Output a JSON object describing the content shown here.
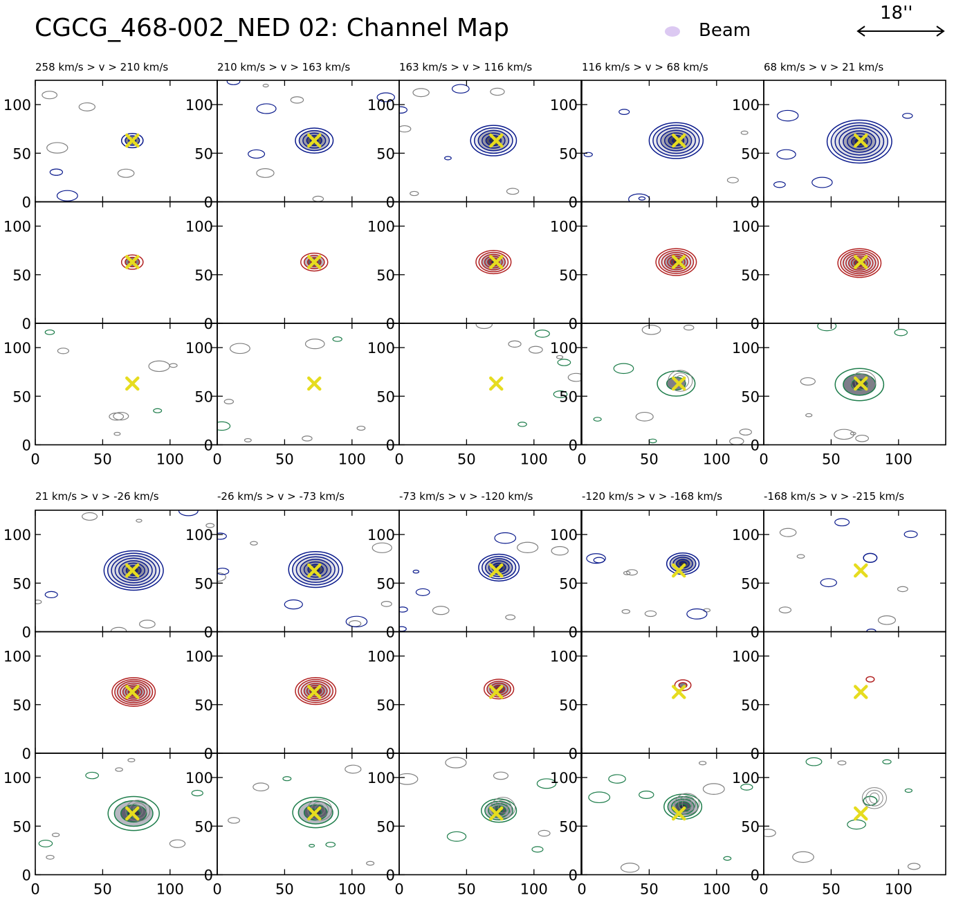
{
  "figure": {
    "title": "CGCG_468-002_NED 02: Channel Map",
    "legend_label": "Beam",
    "scale_label": "18''"
  },
  "colors": {
    "beam": "#dcc9f2",
    "mom0": "#0a1a8c",
    "red": "#b22222",
    "green": "#1e7d4b",
    "neg": "#808080",
    "center": "#e6dc1f",
    "fill_dark": "#14142a",
    "fill_mid": "#7d7d90",
    "fill_light": "#d4d4dc"
  },
  "chart_data": {
    "type": "heatmap",
    "description_rows": [
      "contour",
      "red",
      "green"
    ],
    "xlim": [
      0,
      135
    ],
    "ylim": [
      0,
      125
    ],
    "xticks": [
      0,
      50,
      100
    ],
    "yticks": [
      0,
      50,
      100
    ],
    "center": [
      72,
      63
    ],
    "channels": [
      {
        "label": "258 km/s > v > 210 km/s",
        "v_high": 258,
        "v_low": 210
      },
      {
        "label": "210 km/s > v > 163 km/s",
        "v_high": 210,
        "v_low": 163
      },
      {
        "label": "163 km/s > v > 116 km/s",
        "v_high": 163,
        "v_low": 116
      },
      {
        "label": "116 km/s > v > 68 km/s",
        "v_high": 116,
        "v_low": 68
      },
      {
        "label": "68 km/s > v > 21 km/s",
        "v_high": 68,
        "v_low": 21
      },
      {
        "label": "21 km/s > v > -26 km/s",
        "v_high": 21,
        "v_low": -26
      },
      {
        "label": "-26 km/s > v > -73 km/s",
        "v_high": -26,
        "v_low": -73
      },
      {
        "label": "-73 km/s > v > -120 km/s",
        "v_high": -73,
        "v_low": -120
      },
      {
        "label": "-120 km/s > v > -168 km/s",
        "v_high": -120,
        "v_low": -168
      },
      {
        "label": "-168 km/s > v > -215 km/s",
        "v_high": -168,
        "v_low": -215
      }
    ],
    "emission": [
      {
        "cx": 72,
        "cy": 63,
        "r": 8,
        "levels": 3,
        "red_r": 8,
        "red_levels": 3,
        "green_r": 0,
        "green_levels": 0
      },
      {
        "cx": 72,
        "cy": 63,
        "r": 14,
        "levels": 5,
        "red_r": 10,
        "red_levels": 4,
        "green_r": 0,
        "green_levels": 0
      },
      {
        "cx": 70,
        "cy": 63,
        "r": 17,
        "levels": 6,
        "red_r": 13,
        "red_levels": 6,
        "green_r": 0,
        "green_levels": 0
      },
      {
        "cx": 70,
        "cy": 63,
        "r": 20,
        "levels": 7,
        "red_r": 15,
        "red_levels": 7,
        "green_r": 14,
        "green_levels": 2
      },
      {
        "cx": 71,
        "cy": 62,
        "r": 24,
        "levels": 8,
        "red_r": 16,
        "red_levels": 8,
        "green_r": 18,
        "green_levels": 3
      },
      {
        "cx": 73,
        "cy": 63,
        "r": 22,
        "levels": 8,
        "red_r": 16,
        "red_levels": 8,
        "green_r": 19,
        "green_levels": 4
      },
      {
        "cx": 73,
        "cy": 64,
        "r": 20,
        "levels": 7,
        "red_r": 15,
        "red_levels": 7,
        "green_r": 17,
        "green_levels": 4
      },
      {
        "cx": 74,
        "cy": 66,
        "r": 15,
        "levels": 6,
        "red_r": 11,
        "red_levels": 5,
        "green_r": 13,
        "green_levels": 5
      },
      {
        "cx": 75,
        "cy": 70,
        "r": 12,
        "levels": 5,
        "red_r": 6,
        "red_levels": 2,
        "green_r": 14,
        "green_levels": 5
      },
      {
        "cx": 79,
        "cy": 76,
        "r": 5,
        "levels": 1,
        "red_r": 3,
        "red_levels": 1,
        "green_r": 5,
        "green_levels": 1
      }
    ]
  }
}
